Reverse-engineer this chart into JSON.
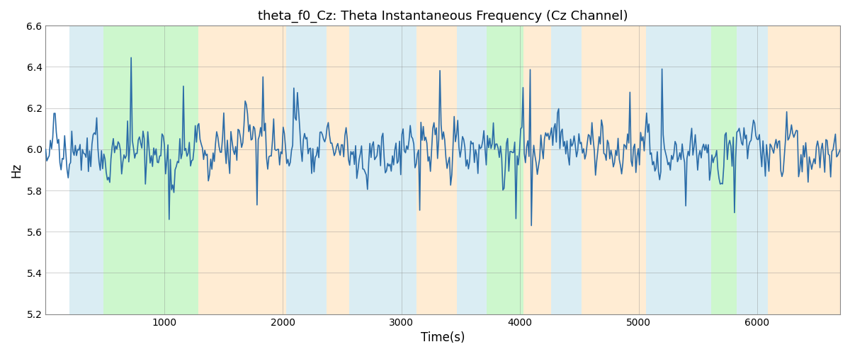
{
  "title": "theta_f0_Cz: Theta Instantaneous Frequency (Cz Channel)",
  "xlabel": "Time(s)",
  "ylabel": "Hz",
  "xlim": [
    0,
    6700
  ],
  "ylim": [
    5.2,
    6.6
  ],
  "yticks": [
    5.2,
    5.4,
    5.6,
    5.8,
    6.0,
    6.2,
    6.4,
    6.6
  ],
  "xticks": [
    1000,
    2000,
    3000,
    4000,
    5000,
    6000
  ],
  "line_color": "#2b6ca8",
  "line_width": 1.2,
  "bg_regions": [
    {
      "xmin": 200,
      "xmax": 490,
      "color": "#add8e6",
      "alpha": 0.45
    },
    {
      "xmin": 490,
      "xmax": 1290,
      "color": "#90ee90",
      "alpha": 0.45
    },
    {
      "xmin": 1290,
      "xmax": 2030,
      "color": "#ffd59e",
      "alpha": 0.45
    },
    {
      "xmin": 2030,
      "xmax": 2370,
      "color": "#add8e6",
      "alpha": 0.45
    },
    {
      "xmin": 2370,
      "xmax": 2560,
      "color": "#ffd59e",
      "alpha": 0.45
    },
    {
      "xmin": 2560,
      "xmax": 3130,
      "color": "#add8e6",
      "alpha": 0.45
    },
    {
      "xmin": 3130,
      "xmax": 3470,
      "color": "#ffd59e",
      "alpha": 0.45
    },
    {
      "xmin": 3470,
      "xmax": 3720,
      "color": "#add8e6",
      "alpha": 0.45
    },
    {
      "xmin": 3720,
      "xmax": 4030,
      "color": "#90ee90",
      "alpha": 0.45
    },
    {
      "xmin": 4030,
      "xmax": 4260,
      "color": "#ffd59e",
      "alpha": 0.45
    },
    {
      "xmin": 4260,
      "xmax": 4520,
      "color": "#add8e6",
      "alpha": 0.45
    },
    {
      "xmin": 4520,
      "xmax": 5060,
      "color": "#ffd59e",
      "alpha": 0.45
    },
    {
      "xmin": 5060,
      "xmax": 5610,
      "color": "#add8e6",
      "alpha": 0.45
    },
    {
      "xmin": 5610,
      "xmax": 5830,
      "color": "#90ee90",
      "alpha": 0.45
    },
    {
      "xmin": 5830,
      "xmax": 6090,
      "color": "#add8e6",
      "alpha": 0.45
    },
    {
      "xmin": 6090,
      "xmax": 6700,
      "color": "#ffd59e",
      "alpha": 0.45
    }
  ],
  "n_points": 670,
  "base_freq": 6.0,
  "noise_std": 0.12,
  "seed": 42
}
